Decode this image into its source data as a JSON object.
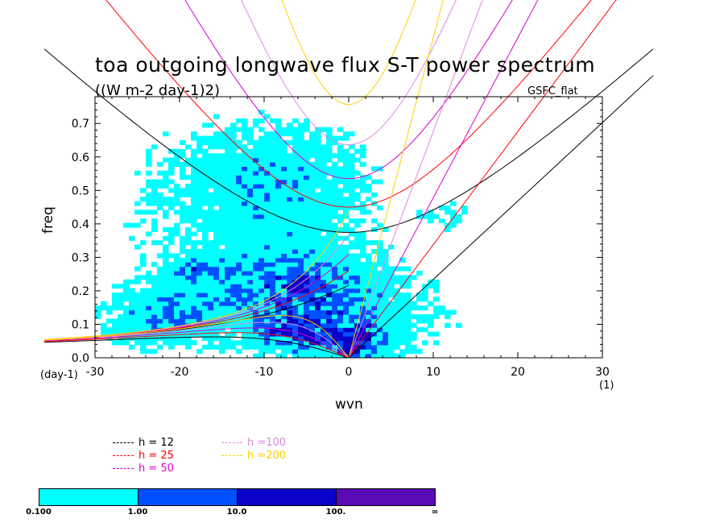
{
  "chart_data": {
    "type": "heatmap",
    "title": "toa outgoing longwave flux S-T power spectrum",
    "subtitle": "((W m-2 day-1)2)",
    "model_label": "GSFC_flat",
    "xlabel": "wvn",
    "ylabel": "freq",
    "x_unit_left": "(day-1)",
    "x_unit_right": "(1)",
    "xlim": [
      -30,
      30
    ],
    "ylim": [
      0,
      0.78
    ],
    "x_ticks": [
      -30,
      -20,
      -10,
      0,
      10,
      20,
      30
    ],
    "x_tick_labels": [
      "-30",
      "-20",
      "-10",
      "0",
      "10",
      "20",
      "30"
    ],
    "y_ticks": [
      0,
      0.1,
      0.2,
      0.3,
      0.4,
      0.5,
      0.6,
      0.7
    ],
    "y_tick_labels": [
      "0.0",
      "0.1",
      "0.2",
      "0.3",
      "0.4",
      "0.5",
      "0.6",
      "0.7"
    ],
    "contour_levels": [
      "0.100",
      "1.00",
      "10.0",
      "100.",
      "∞"
    ],
    "contour_colors": [
      "#00ffff",
      "#0050ff",
      "#0a00c8",
      "#5a0ab4"
    ],
    "dispersion_curves": [
      {
        "name": "h = 12",
        "h": 12,
        "color": "#000000"
      },
      {
        "name": "h = 25",
        "h": 25,
        "color": "#ff0000"
      },
      {
        "name": "h = 50",
        "h": 50,
        "color": "#dd00cc"
      },
      {
        "name": "h =100",
        "h": 100,
        "color": "#dd88dd"
      },
      {
        "name": "h =200",
        "h": 200,
        "color": "#ffcc00"
      }
    ],
    "blobs": [
      {
        "cx": -17,
        "cy": 0.36,
        "rx": 14,
        "ry": 0.32,
        "level": 0
      },
      {
        "cx": -5,
        "cy": 0.34,
        "rx": 11,
        "ry": 0.34,
        "level": 0
      },
      {
        "cx": -10,
        "cy": 0.58,
        "rx": 13,
        "ry": 0.15,
        "level": 0
      },
      {
        "cx": 7,
        "cy": 0.12,
        "rx": 10,
        "ry": 0.16,
        "level": 0
      },
      {
        "cx": 12,
        "cy": 0.42,
        "rx": 4,
        "ry": 0.06,
        "level": 0
      },
      {
        "cx": -22,
        "cy": 0.12,
        "rx": 7,
        "ry": 0.09,
        "level": 1
      },
      {
        "cx": -6,
        "cy": 0.2,
        "rx": 8,
        "ry": 0.1,
        "level": 1
      },
      {
        "cx": -18,
        "cy": 0.27,
        "rx": 3,
        "ry": 0.03,
        "level": 1
      },
      {
        "cx": 2,
        "cy": 0.07,
        "rx": 4,
        "ry": 0.07,
        "level": 1
      },
      {
        "cx": -6,
        "cy": 0.07,
        "rx": 5,
        "ry": 0.05,
        "level": 2
      },
      {
        "cx": 0.5,
        "cy": 0.03,
        "rx": 2,
        "ry": 0.03,
        "level": 2
      }
    ]
  }
}
